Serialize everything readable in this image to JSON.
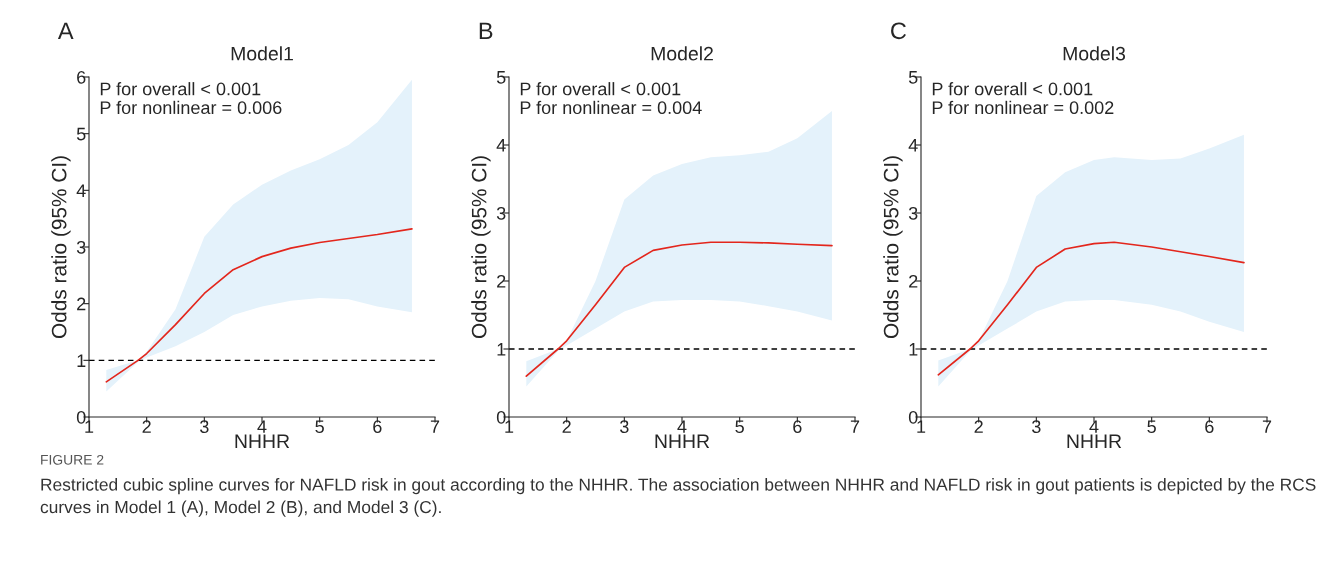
{
  "chart_data": [
    {
      "type": "line",
      "title": "Model1",
      "xlabel": "NHHR",
      "ylabel": "Odds ratio (95% CI)",
      "annotations": [
        "A",
        "P for overall < 0.001",
        "P for nonlinear = 0.006"
      ],
      "xlim": [
        1,
        7
      ],
      "xticks": [
        1,
        2,
        3,
        4,
        5,
        6,
        7
      ],
      "ylim": [
        0,
        6
      ],
      "yticks": [
        0,
        1,
        2,
        3,
        4,
        5,
        6
      ],
      "grid": false,
      "legend": false,
      "ref_lines": [
        {
          "axis": "y",
          "value": 1,
          "color": "#000000",
          "line_style": "dashed"
        }
      ],
      "series": [
        {
          "color": "#e3261c",
          "x": [
            1.3,
            1.85,
            2,
            2.5,
            3,
            3.5,
            4,
            4.5,
            5,
            5.5,
            6,
            6.6
          ],
          "values": [
            0.62,
            1.0,
            1.12,
            1.63,
            2.18,
            2.6,
            2.83,
            2.98,
            3.08,
            3.15,
            3.22,
            3.32
          ],
          "lower": [
            0.45,
            0.97,
            1.05,
            1.25,
            1.5,
            1.8,
            1.95,
            2.05,
            2.1,
            2.08,
            1.95,
            1.85
          ],
          "upper": [
            0.83,
            1.0,
            1.15,
            1.9,
            3.18,
            3.75,
            4.1,
            4.35,
            4.55,
            4.8,
            5.2,
            5.95
          ]
        }
      ]
    },
    {
      "type": "line",
      "title": "Model2",
      "xlabel": "NHHR",
      "ylabel": "Odds ratio (95% CI)",
      "annotations": [
        "B",
        "P for overall < 0.001",
        "P for nonlinear = 0.004"
      ],
      "xlim": [
        1,
        7
      ],
      "xticks": [
        1,
        2,
        3,
        4,
        5,
        6,
        7
      ],
      "ylim": [
        0,
        5
      ],
      "yticks": [
        0,
        1,
        2,
        3,
        4,
        5
      ],
      "grid": false,
      "legend": false,
      "ref_lines": [
        {
          "axis": "y",
          "value": 1,
          "color": "#000000",
          "line_style": "dashed"
        }
      ],
      "series": [
        {
          "color": "#e3261c",
          "x": [
            1.3,
            1.85,
            2,
            2.5,
            3,
            3.5,
            4,
            4.5,
            5,
            5.5,
            6,
            6.6
          ],
          "values": [
            0.6,
            1.0,
            1.12,
            1.65,
            2.2,
            2.45,
            2.53,
            2.57,
            2.57,
            2.56,
            2.54,
            2.52
          ],
          "lower": [
            0.45,
            0.97,
            1.05,
            1.3,
            1.55,
            1.7,
            1.72,
            1.72,
            1.7,
            1.63,
            1.55,
            1.42
          ],
          "upper": [
            0.82,
            1.0,
            1.12,
            2.0,
            3.2,
            3.55,
            3.72,
            3.82,
            3.85,
            3.9,
            4.1,
            4.5
          ]
        }
      ]
    },
    {
      "type": "line",
      "title": "Model3",
      "xlabel": "NHHR",
      "ylabel": "Odds ratio (95% CI)",
      "annotations": [
        "C",
        "P for overall < 0.001",
        "P for nonlinear = 0.002",
        "FIGURE 2",
        "Restricted cubic spline curves for NAFLD risk in gout according to the NHHR. The association between NHHR and NAFLD risk in gout patients is depicted by the RCS curves in Model 1 (A), Model 2 (B), and Model 3 (C)."
      ],
      "xlim": [
        1,
        7
      ],
      "xticks": [
        1,
        2,
        3,
        4,
        5,
        6,
        7
      ],
      "ylim": [
        0,
        5
      ],
      "yticks": [
        0,
        1,
        2,
        3,
        4,
        5
      ],
      "grid": false,
      "legend": false,
      "ref_lines": [
        {
          "axis": "y",
          "value": 1,
          "color": "#000000",
          "line_style": "dashed"
        }
      ],
      "series": [
        {
          "color": "#e3261c",
          "x": [
            1.3,
            1.85,
            2,
            2.5,
            3,
            3.5,
            4,
            4.35,
            5,
            5.5,
            6,
            6.6
          ],
          "values": [
            0.62,
            1.0,
            1.12,
            1.65,
            2.2,
            2.47,
            2.55,
            2.57,
            2.5,
            2.43,
            2.36,
            2.27
          ],
          "lower": [
            0.45,
            0.97,
            1.05,
            1.3,
            1.55,
            1.7,
            1.72,
            1.72,
            1.65,
            1.55,
            1.4,
            1.25
          ],
          "upper": [
            0.83,
            1.0,
            1.12,
            2.0,
            3.25,
            3.6,
            3.78,
            3.82,
            3.78,
            3.8,
            3.95,
            4.15
          ]
        }
      ]
    }
  ]
}
